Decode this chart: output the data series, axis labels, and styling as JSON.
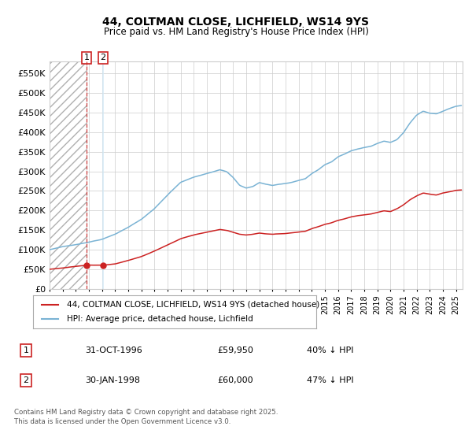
{
  "title": "44, COLTMAN CLOSE, LICHFIELD, WS14 9YS",
  "subtitle": "Price paid vs. HM Land Registry's House Price Index (HPI)",
  "ylim": [
    0,
    580000
  ],
  "yticks": [
    0,
    50000,
    100000,
    150000,
    200000,
    250000,
    300000,
    350000,
    400000,
    450000,
    500000,
    550000
  ],
  "ytick_labels": [
    "£0",
    "£50K",
    "£100K",
    "£150K",
    "£200K",
    "£250K",
    "£300K",
    "£350K",
    "£400K",
    "£450K",
    "£500K",
    "£550K"
  ],
  "xlim_start": 1994.0,
  "xlim_end": 2025.5,
  "hpi_color": "#7ab3d4",
  "price_color": "#cc2222",
  "transaction1_date": 1996.833,
  "transaction1_price": 59950,
  "transaction2_date": 1998.083,
  "transaction2_price": 60000,
  "transaction1_label": "31-OCT-1996",
  "transaction1_amount": "£59,950",
  "transaction1_hpi": "40% ↓ HPI",
  "transaction2_label": "30-JAN-1998",
  "transaction2_amount": "£60,000",
  "transaction2_hpi": "47% ↓ HPI",
  "legend_line1": "44, COLTMAN CLOSE, LICHFIELD, WS14 9YS (detached house)",
  "legend_line2": "HPI: Average price, detached house, Lichfield",
  "footer": "Contains HM Land Registry data © Crown copyright and database right 2025.\nThis data is licensed under the Open Government Licence v3.0.",
  "grid_color": "#cccccc",
  "background_color": "#ffffff"
}
